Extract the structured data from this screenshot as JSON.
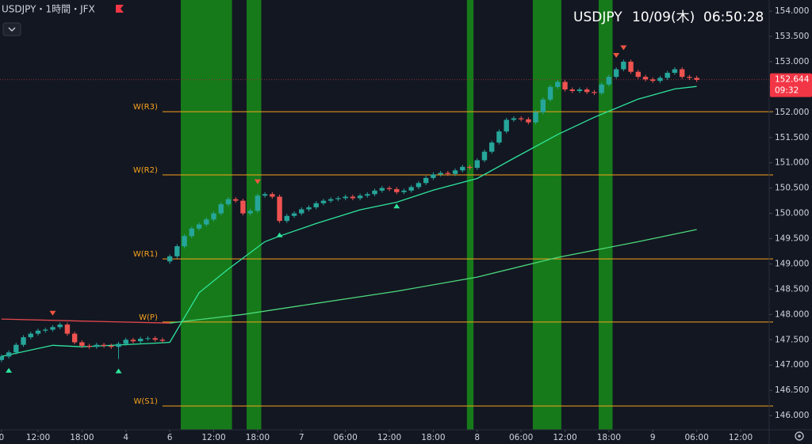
{
  "chart_data": {
    "type": "candlestick",
    "title": "USDJPY・1時間・JFX",
    "symbol": "USDJPY",
    "date": "10/09(木)",
    "time": "06:50:28",
    "last_price": 152.644,
    "countdown": "09:32",
    "colors": {
      "up": "#26a69a",
      "down": "#ef5350",
      "last_price": "#f23645",
      "buy": "#2ee59d",
      "sell": "#f0553f"
    },
    "x": [
      -23,
      -22,
      -21,
      -20,
      -19,
      -18,
      -17,
      -16,
      -15,
      -14,
      -13,
      -12,
      -11,
      -10,
      -9,
      -8,
      -7,
      -6,
      -5,
      -4,
      -3,
      -2,
      -1,
      0,
      1,
      2,
      3,
      4,
      5,
      6,
      7,
      8,
      9,
      10,
      11,
      12,
      13,
      14,
      15,
      16,
      17,
      18,
      19,
      20,
      21,
      22,
      23,
      24,
      25,
      26,
      27,
      28,
      29,
      30,
      31,
      32,
      33,
      34,
      35,
      36,
      37,
      38,
      39,
      40,
      41,
      42,
      43,
      44,
      45,
      46,
      47,
      48,
      49,
      50,
      51,
      52,
      53,
      54,
      55,
      56,
      57,
      58,
      59,
      60,
      61,
      62,
      63,
      64,
      65,
      66,
      67,
      68,
      69,
      70,
      71,
      72
    ],
    "ohlc": [
      [
        147.1,
        147.21,
        147.06,
        147.17
      ],
      [
        147.17,
        147.29,
        147.13,
        147.25
      ],
      [
        147.25,
        147.44,
        147.21,
        147.4
      ],
      [
        147.4,
        147.59,
        147.36,
        147.55
      ],
      [
        147.55,
        147.66,
        147.51,
        147.62
      ],
      [
        147.62,
        147.72,
        147.58,
        147.68
      ],
      [
        147.68,
        147.74,
        147.64,
        147.7
      ],
      [
        147.7,
        147.79,
        147.66,
        147.75
      ],
      [
        147.75,
        147.84,
        147.71,
        147.8
      ],
      [
        147.8,
        147.84,
        147.58,
        147.62
      ],
      [
        147.62,
        147.66,
        147.41,
        147.45
      ],
      [
        147.45,
        147.49,
        147.34,
        147.38
      ],
      [
        147.38,
        147.42,
        147.32,
        147.36
      ],
      [
        147.36,
        147.44,
        147.32,
        147.4
      ],
      [
        147.4,
        147.44,
        147.34,
        147.38
      ],
      [
        147.38,
        147.42,
        147.32,
        147.36
      ],
      [
        147.36,
        147.46,
        147.12,
        147.42
      ],
      [
        147.42,
        147.54,
        147.38,
        147.5
      ],
      [
        147.5,
        147.54,
        147.43,
        147.47
      ],
      [
        147.47,
        147.56,
        147.43,
        147.52
      ],
      [
        147.52,
        147.57,
        147.48,
        147.53
      ],
      [
        147.53,
        147.57,
        147.46,
        147.5
      ],
      [
        147.5,
        147.54,
        147.44,
        147.48
      ],
      [
        149.05,
        149.19,
        149.0,
        149.15
      ],
      [
        149.15,
        149.39,
        149.11,
        149.35
      ],
      [
        149.35,
        149.59,
        149.31,
        149.55
      ],
      [
        149.55,
        149.74,
        149.51,
        149.7
      ],
      [
        149.7,
        149.82,
        149.66,
        149.78
      ],
      [
        149.78,
        149.92,
        149.74,
        149.88
      ],
      [
        149.88,
        150.04,
        149.84,
        150.0
      ],
      [
        150.0,
        150.22,
        149.96,
        150.18
      ],
      [
        150.18,
        150.32,
        150.14,
        150.28
      ],
      [
        150.28,
        150.32,
        150.21,
        150.25
      ],
      [
        150.25,
        150.29,
        149.96,
        150.0
      ],
      [
        150.0,
        150.09,
        149.96,
        150.05
      ],
      [
        150.05,
        150.39,
        150.01,
        150.35
      ],
      [
        150.35,
        150.42,
        150.31,
        150.38
      ],
      [
        150.38,
        150.42,
        150.29,
        150.33
      ],
      [
        150.33,
        150.37,
        149.81,
        149.85
      ],
      [
        149.85,
        149.99,
        149.81,
        149.95
      ],
      [
        149.95,
        150.04,
        149.91,
        150.0
      ],
      [
        150.0,
        150.12,
        149.96,
        150.08
      ],
      [
        150.08,
        150.16,
        150.04,
        150.12
      ],
      [
        150.12,
        150.24,
        150.08,
        150.2
      ],
      [
        150.2,
        150.29,
        150.16,
        150.25
      ],
      [
        150.25,
        150.32,
        150.21,
        150.28
      ],
      [
        150.28,
        150.34,
        150.24,
        150.3
      ],
      [
        150.3,
        150.37,
        150.26,
        150.33
      ],
      [
        150.33,
        150.37,
        150.26,
        150.3
      ],
      [
        150.3,
        150.39,
        150.26,
        150.35
      ],
      [
        150.35,
        150.42,
        150.31,
        150.38
      ],
      [
        150.38,
        150.49,
        150.34,
        150.45
      ],
      [
        150.45,
        150.54,
        150.41,
        150.5
      ],
      [
        150.5,
        150.54,
        150.44,
        150.48
      ],
      [
        150.48,
        150.52,
        150.38,
        150.42
      ],
      [
        150.42,
        150.49,
        150.38,
        150.45
      ],
      [
        150.45,
        150.56,
        150.41,
        150.52
      ],
      [
        150.52,
        150.64,
        150.48,
        150.6
      ],
      [
        150.6,
        150.74,
        150.56,
        150.7
      ],
      [
        150.7,
        150.81,
        150.66,
        150.77
      ],
      [
        150.77,
        150.84,
        150.73,
        150.8
      ],
      [
        150.8,
        150.84,
        150.74,
        150.78
      ],
      [
        150.78,
        150.89,
        150.74,
        150.85
      ],
      [
        150.85,
        150.96,
        150.81,
        150.92
      ],
      [
        150.92,
        150.96,
        150.86,
        150.9
      ],
      [
        150.9,
        151.09,
        150.86,
        151.05
      ],
      [
        151.05,
        151.26,
        151.01,
        151.22
      ],
      [
        151.22,
        151.44,
        151.18,
        151.4
      ],
      [
        151.4,
        151.66,
        151.36,
        151.62
      ],
      [
        151.62,
        151.89,
        151.58,
        151.85
      ],
      [
        151.85,
        151.92,
        151.81,
        151.88
      ],
      [
        151.88,
        151.92,
        151.82,
        151.86
      ],
      [
        151.86,
        151.9,
        151.76,
        151.8
      ],
      [
        151.8,
        152.04,
        151.76,
        152.0
      ],
      [
        152.0,
        152.29,
        151.96,
        152.25
      ],
      [
        152.25,
        152.54,
        152.21,
        152.5
      ],
      [
        152.5,
        152.64,
        152.46,
        152.6
      ],
      [
        152.6,
        152.64,
        152.41,
        152.45
      ],
      [
        152.45,
        152.49,
        152.38,
        152.42
      ],
      [
        152.42,
        152.49,
        152.38,
        152.45
      ],
      [
        152.45,
        152.49,
        152.36,
        152.4
      ],
      [
        152.4,
        152.44,
        152.34,
        152.38
      ],
      [
        152.38,
        152.59,
        152.34,
        152.55
      ],
      [
        152.55,
        152.74,
        152.51,
        152.7
      ],
      [
        152.7,
        152.89,
        152.66,
        152.85
      ],
      [
        152.85,
        153.04,
        152.81,
        153.0
      ],
      [
        153.0,
        153.04,
        152.76,
        152.8
      ],
      [
        152.8,
        152.84,
        152.66,
        152.7
      ],
      [
        152.7,
        152.74,
        152.61,
        152.65
      ],
      [
        152.65,
        152.69,
        152.58,
        152.62
      ],
      [
        152.62,
        152.72,
        152.58,
        152.68
      ],
      [
        152.68,
        152.82,
        152.64,
        152.78
      ],
      [
        152.78,
        152.89,
        152.74,
        152.85
      ],
      [
        152.85,
        152.89,
        152.66,
        152.7
      ],
      [
        152.7,
        152.74,
        152.64,
        152.68
      ],
      [
        152.68,
        152.72,
        152.6,
        152.64
      ]
    ],
    "series": [
      {
        "color": "#2ee59d",
        "x": [
          -23,
          -16,
          -12,
          -1,
          0,
          4,
          8,
          13,
          15,
          20,
          26,
          31,
          36,
          42,
          47,
          53,
          58,
          64,
          69,
          72
        ],
        "values": [
          147.17,
          147.39,
          147.36,
          147.44,
          147.45,
          148.43,
          148.9,
          149.44,
          149.55,
          149.8,
          150.07,
          150.22,
          150.46,
          150.69,
          151.09,
          151.56,
          151.9,
          152.26,
          152.46,
          152.51
        ]
      },
      {
        "color": "#e5484d",
        "x": [
          -23,
          -12,
          0
        ],
        "values": [
          147.91,
          147.87,
          147.83
        ]
      },
      {
        "color": "#4cd97b",
        "x": [
          0,
          10,
          20,
          31,
          42,
          53,
          64,
          72
        ],
        "values": [
          147.83,
          148.0,
          148.22,
          148.46,
          148.74,
          149.13,
          149.44,
          149.68
        ]
      }
    ],
    "levels": [
      {
        "label": "W(R3)",
        "value": 152.01
      },
      {
        "label": "W(R2)",
        "value": 150.76
      },
      {
        "label": "W(R1)",
        "value": 149.1
      },
      {
        "label": "W(P)",
        "value": 147.85
      },
      {
        "label": "W(S1)",
        "value": 146.19
      }
    ],
    "level_color": "#f7a21b",
    "zones": [
      [
        1.5,
        8.5
      ],
      [
        10.5,
        12.5
      ],
      [
        40.6,
        41.5
      ],
      [
        49.6,
        53.5
      ],
      [
        58.6,
        60.5
      ]
    ],
    "zone_color": "#177a1a",
    "buy_signals": [
      -22,
      -7,
      15,
      31
    ],
    "sell_signals": [
      -16,
      12,
      61,
      62
    ],
    "xlim": [
      -23.2,
      81.9
    ],
    "ylim": [
      145.72,
      154.22
    ],
    "xticks": [
      {
        "value": -23,
        "label": "0"
      },
      {
        "value": -18,
        "label": "12:00"
      },
      {
        "value": -12,
        "label": "18:00"
      },
      {
        "value": -6,
        "label": "4"
      },
      {
        "value": 0,
        "label": "6"
      },
      {
        "value": 6,
        "label": "12:00"
      },
      {
        "value": 12,
        "label": "18:00"
      },
      {
        "value": 18,
        "label": "7"
      },
      {
        "value": 24,
        "label": "06:00"
      },
      {
        "value": 30,
        "label": "12:00"
      },
      {
        "value": 36,
        "label": "18:00"
      },
      {
        "value": 42,
        "label": "8"
      },
      {
        "value": 48,
        "label": "06:00"
      },
      {
        "value": 54,
        "label": "12:00"
      },
      {
        "value": 60,
        "label": "18:00"
      },
      {
        "value": 66,
        "label": "9"
      },
      {
        "value": 72,
        "label": "06:00"
      },
      {
        "value": 78,
        "label": "12:00"
      }
    ],
    "yticks": [
      {
        "value": 146,
        "label": "146.000"
      },
      {
        "value": 146.5,
        "label": "146.500"
      },
      {
        "value": 147,
        "label": "147.000"
      },
      {
        "value": 147.5,
        "label": "147.500"
      },
      {
        "value": 148,
        "label": "148.000"
      },
      {
        "value": 148.5,
        "label": "148.500"
      },
      {
        "value": 149,
        "label": "149.000"
      },
      {
        "value": 149.5,
        "label": "149.500"
      },
      {
        "value": 150,
        "label": "150.000"
      },
      {
        "value": 150.5,
        "label": "150.500"
      },
      {
        "value": 151,
        "label": "151.000"
      },
      {
        "value": 151.5,
        "label": "151.500"
      },
      {
        "value": 152,
        "label": "152.000"
      },
      {
        "value": 152.5,
        "label": "152.500"
      },
      {
        "value": 153,
        "label": "153.000"
      },
      {
        "value": 153.5,
        "label": "153.500"
      },
      {
        "value": 154,
        "label": "154.000"
      }
    ]
  }
}
